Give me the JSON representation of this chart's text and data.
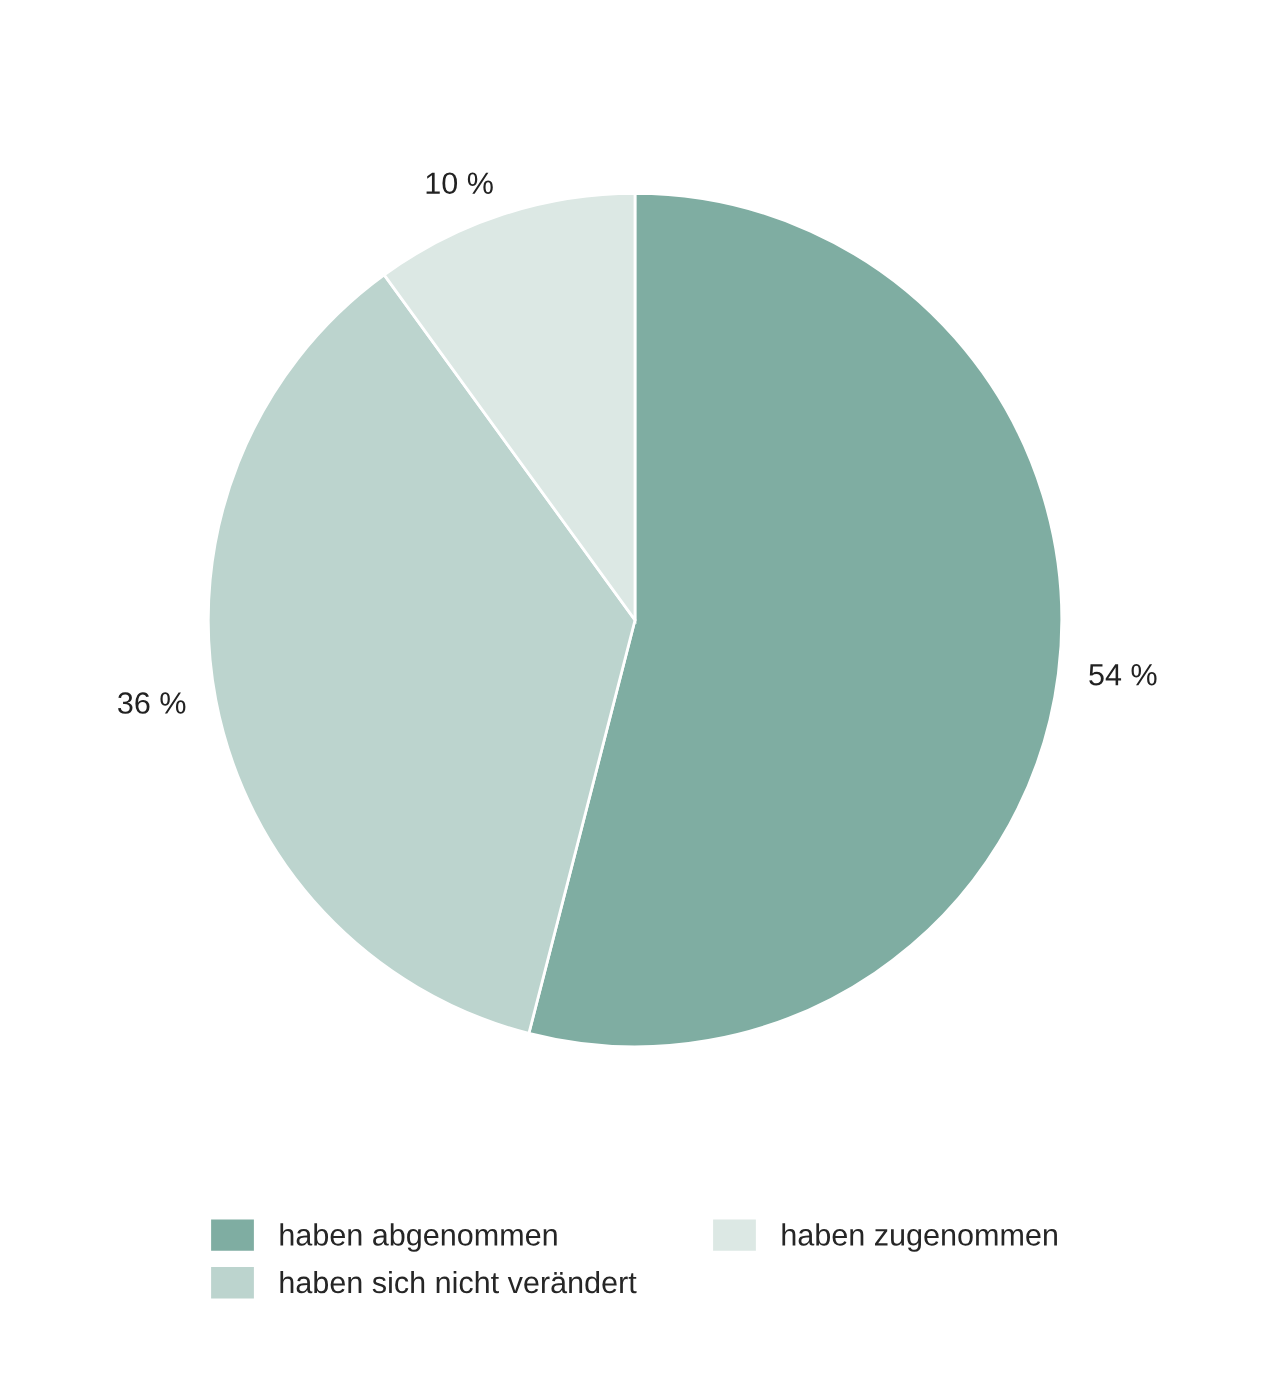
{
  "chart_data": {
    "type": "pie",
    "categories": [
      "haben abgenommen",
      "haben sich nicht verändert",
      "haben zugenommen"
    ],
    "values": [
      54,
      36,
      10
    ],
    "value_labels": [
      "54 %",
      "36 %",
      "10 %"
    ],
    "colors": [
      "#7fada2",
      "#bcd4ce",
      "#dce8e4"
    ],
    "legend": "bottom"
  }
}
